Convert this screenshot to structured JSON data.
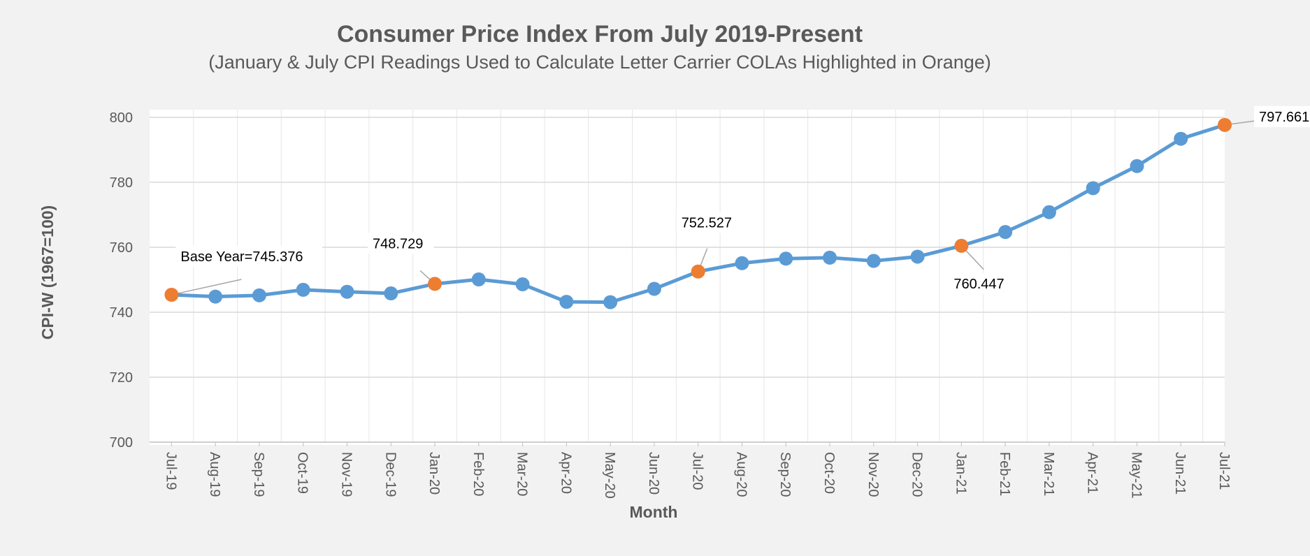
{
  "chart_data": {
    "type": "line",
    "title": "Consumer Price Index From July 2019-Present",
    "subtitle": "(January & July CPI Readings Used to Calculate Letter Carrier COLAs Highlighted in Orange)",
    "xlabel": "Month",
    "ylabel": "CPI-W (1967=100)",
    "ylim": [
      700,
      800
    ],
    "yticks": [
      700,
      720,
      740,
      760,
      780,
      800
    ],
    "grid": true,
    "categories": [
      "Jul-19",
      "Aug-19",
      "Sep-19",
      "Oct-19",
      "Nov-19",
      "Dec-19",
      "Jan-20",
      "Feb-20",
      "Mar-20",
      "Apr-20",
      "May-20",
      "Jun-20",
      "Jul-20",
      "Aug-20",
      "Sep-20",
      "Oct-20",
      "Nov-20",
      "Dec-20",
      "Jan-21",
      "Feb-21",
      "Mar-21",
      "Apr-21",
      "May-21",
      "Jun-21",
      "Jul-21"
    ],
    "series": [
      {
        "name": "CPI-W",
        "values": [
          745.376,
          744.8,
          745.2,
          746.9,
          746.3,
          745.8,
          748.729,
          750.1,
          748.6,
          743.2,
          743.1,
          747.2,
          752.527,
          755.1,
          756.5,
          756.8,
          755.8,
          757.1,
          760.447,
          764.7,
          770.8,
          778.2,
          785.0,
          793.4,
          797.661
        ],
        "color": "#5b9bd5"
      }
    ],
    "highlight_color": "#ed7d31",
    "highlight_indices": [
      0,
      6,
      12,
      18,
      24
    ],
    "annotations": [
      {
        "index": 0,
        "text": "Base Year=745.376"
      },
      {
        "index": 6,
        "text": "748.729"
      },
      {
        "index": 12,
        "text": "752.527"
      },
      {
        "index": 18,
        "text": "760.447"
      },
      {
        "index": 24,
        "text": "797.661"
      }
    ]
  }
}
